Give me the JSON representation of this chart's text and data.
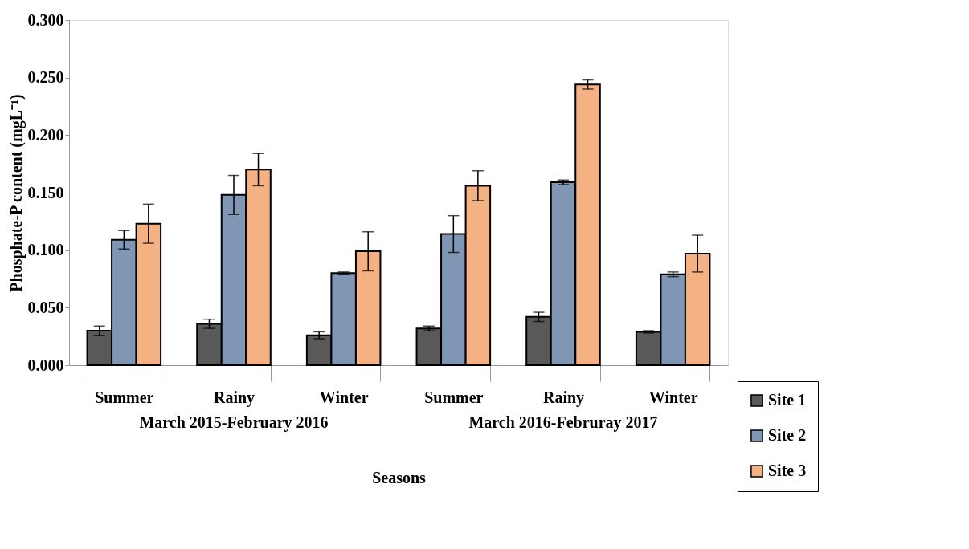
{
  "chart_data": {
    "type": "bar",
    "xlabel": "Seasons",
    "ylabel": "Phosphate-P content (mgL⁻¹)",
    "categories": [
      "Summer",
      "Rainy",
      "Winter",
      "Summer",
      "Rainy",
      "Winter"
    ],
    "annotations": [
      "March 2015-February 2016",
      "March 2016-Februray 2017"
    ],
    "series": [
      {
        "name": "Site 1",
        "color": "#595959",
        "values": [
          0.03,
          0.036,
          0.026,
          0.032,
          0.042,
          0.029
        ],
        "errors": [
          0.004,
          0.004,
          0.003,
          0.002,
          0.004,
          0.001
        ]
      },
      {
        "name": "Site 2",
        "color": "#7f96b4",
        "values": [
          0.109,
          0.148,
          0.08,
          0.114,
          0.159,
          0.079
        ],
        "errors": [
          0.008,
          0.017,
          0.001,
          0.016,
          0.002,
          0.002
        ]
      },
      {
        "name": "Site 3",
        "color": "#f4b183",
        "values": [
          0.123,
          0.17,
          0.099,
          0.156,
          0.244,
          0.097
        ],
        "errors": [
          0.017,
          0.014,
          0.017,
          0.013,
          0.004,
          0.016
        ]
      }
    ],
    "ylim": [
      0,
      0.3
    ],
    "yticks": [
      {
        "value": 0,
        "label": "0.000"
      },
      {
        "value": 0.05,
        "label": "0.050"
      },
      {
        "value": 0.1,
        "label": "0.100"
      },
      {
        "value": 0.15,
        "label": "0.150"
      },
      {
        "value": 0.2,
        "label": "0.200"
      },
      {
        "value": 0.25,
        "label": "0.250"
      },
      {
        "value": 0.3,
        "label": "0.300"
      }
    ],
    "grid": false,
    "legend": "bottom right"
  }
}
